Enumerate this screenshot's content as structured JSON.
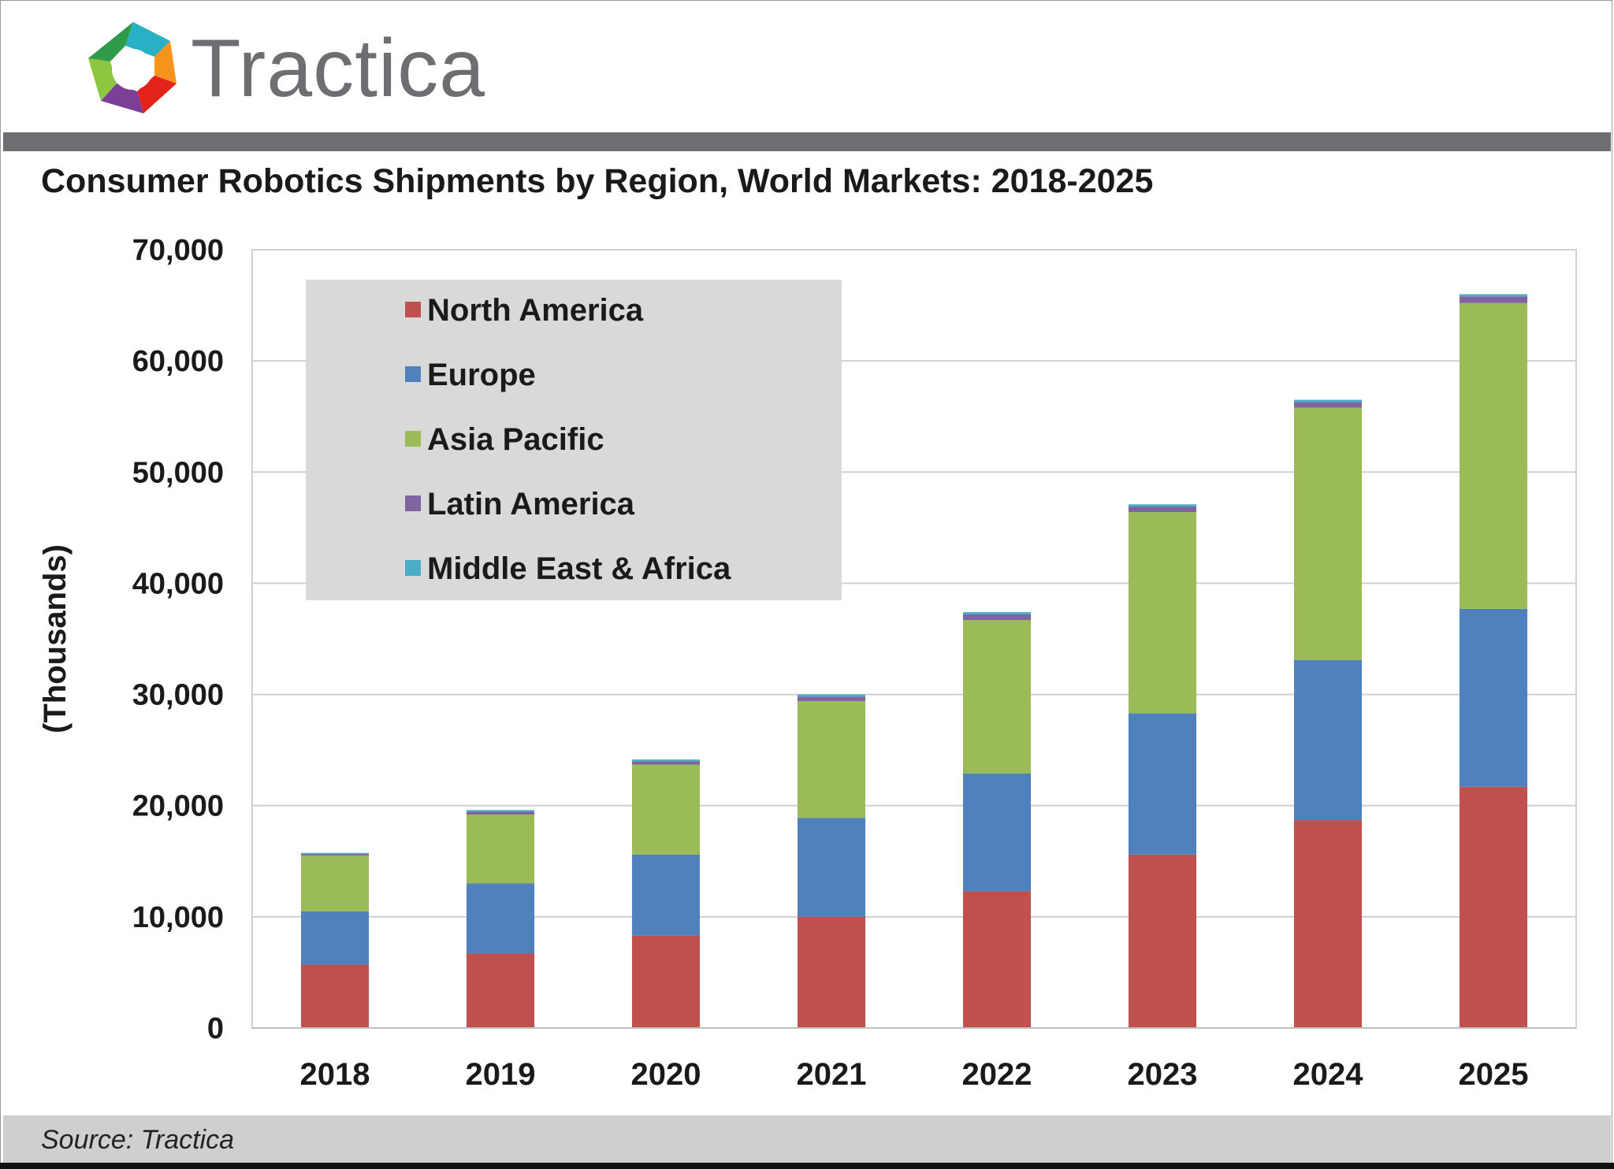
{
  "brand": {
    "name": "Tractica",
    "logo_icon": "aperture-logo-icon",
    "colors": {
      "text": "#6d6e71",
      "petals": [
        "#8dc63f",
        "#2ab0c5",
        "#f7941d",
        "#e2231a",
        "#7b3f98"
      ]
    }
  },
  "chart_data": {
    "type": "bar",
    "stacked": true,
    "title": "Consumer Robotics Shipments by Region, World Markets: 2018-2025",
    "xlabel": "",
    "ylabel": "(Thousands)",
    "ylim": [
      0,
      70000
    ],
    "yticks": [
      0,
      10000,
      20000,
      30000,
      40000,
      50000,
      60000,
      70000
    ],
    "ytick_labels": [
      "0",
      "10,000",
      "20,000",
      "30,000",
      "40,000",
      "50,000",
      "60,000",
      "70,000"
    ],
    "grid": true,
    "legend_position": "top-left",
    "categories": [
      "2018",
      "2019",
      "2020",
      "2021",
      "2022",
      "2023",
      "2024",
      "2025"
    ],
    "series": [
      {
        "name": "North America",
        "color": "#c0504d",
        "values": [
          5700,
          6700,
          8300,
          10000,
          12300,
          15600,
          18700,
          21700
        ]
      },
      {
        "name": "Europe",
        "color": "#4f81bd",
        "values": [
          4800,
          6300,
          7300,
          8900,
          10600,
          12700,
          14400,
          16000
        ]
      },
      {
        "name": "Asia Pacific",
        "color": "#9bbb59",
        "values": [
          5000,
          6200,
          8100,
          10500,
          13800,
          18100,
          22700,
          27500
        ]
      },
      {
        "name": "Latin America",
        "color": "#8064a2",
        "values": [
          150,
          250,
          300,
          400,
          500,
          500,
          500,
          600
        ]
      },
      {
        "name": "Middle East & Africa",
        "color": "#4bacc6",
        "values": [
          100,
          150,
          150,
          200,
          200,
          200,
          200,
          200
        ]
      }
    ]
  },
  "footer": {
    "source": "Source: Tractica"
  }
}
